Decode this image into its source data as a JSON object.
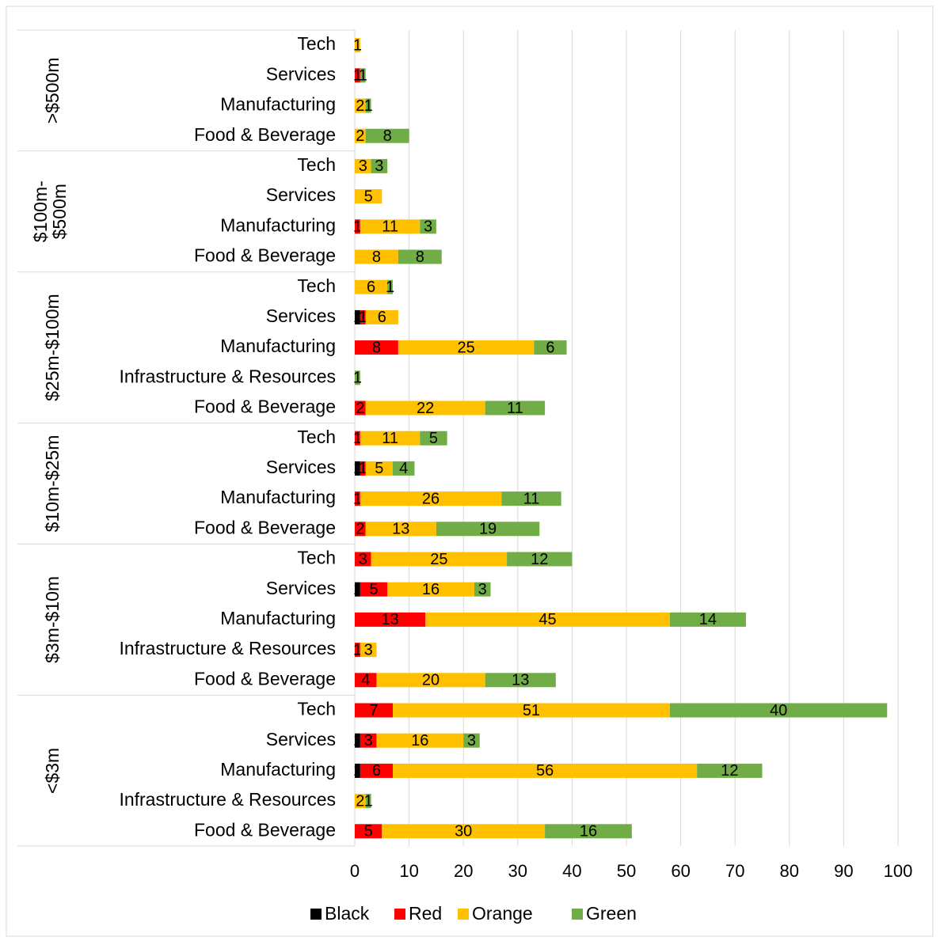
{
  "chart_data": {
    "type": "bar",
    "orientation": "horizontal",
    "stacked": true,
    "title": "",
    "xlabel": "",
    "ylabel": "",
    "xlim": [
      0,
      100
    ],
    "xticks": [
      0,
      10,
      20,
      30,
      40,
      50,
      60,
      70,
      80,
      90,
      100
    ],
    "grid": true,
    "legend_position": "bottom",
    "series": [
      {
        "name": "Black",
        "color": "#000000"
      },
      {
        "name": "Red",
        "color": "#ff0000"
      },
      {
        "name": "Orange",
        "color": "#ffc000"
      },
      {
        "name": "Green",
        "color": "#70ad47"
      }
    ],
    "groups": [
      {
        "name": "<$3m",
        "categories": [
          {
            "label": "Food & Beverage",
            "values": [
              0,
              5,
              30,
              16
            ]
          },
          {
            "label": "Infrastructure & Resources",
            "values": [
              0,
              0,
              2,
              1
            ]
          },
          {
            "label": "Manufacturing",
            "values": [
              1,
              6,
              56,
              12
            ]
          },
          {
            "label": "Services",
            "values": [
              1,
              3,
              16,
              3
            ]
          },
          {
            "label": "Tech",
            "values": [
              0,
              7,
              51,
              40
            ]
          }
        ]
      },
      {
        "name": "$3m-$10m",
        "categories": [
          {
            "label": "Food & Beverage",
            "values": [
              0,
              4,
              20,
              13
            ]
          },
          {
            "label": "Infrastructure & Resources",
            "values": [
              0,
              1,
              3,
              0
            ]
          },
          {
            "label": "Manufacturing",
            "values": [
              0,
              13,
              45,
              14
            ]
          },
          {
            "label": "Services",
            "values": [
              1,
              5,
              16,
              3
            ]
          },
          {
            "label": "Tech",
            "values": [
              0,
              3,
              25,
              12
            ]
          }
        ]
      },
      {
        "name": "$10m-$25m",
        "categories": [
          {
            "label": "Food & Beverage",
            "values": [
              0,
              2,
              13,
              19
            ]
          },
          {
            "label": "Manufacturing",
            "values": [
              0,
              1,
              26,
              11
            ]
          },
          {
            "label": "Services",
            "values": [
              1,
              1,
              5,
              4
            ]
          },
          {
            "label": "Tech",
            "values": [
              0,
              1,
              11,
              5
            ]
          }
        ]
      },
      {
        "name": "$25m-$100m",
        "categories": [
          {
            "label": "Food & Beverage",
            "values": [
              0,
              2,
              22,
              11
            ]
          },
          {
            "label": "Infrastructure & Resources",
            "values": [
              0,
              0,
              0,
              1
            ]
          },
          {
            "label": "Manufacturing",
            "values": [
              0,
              8,
              25,
              6
            ]
          },
          {
            "label": "Services",
            "values": [
              1,
              1,
              6,
              0
            ]
          },
          {
            "label": "Tech",
            "values": [
              0,
              0,
              6,
              1
            ]
          }
        ]
      },
      {
        "name": "$100m-$500m",
        "categories": [
          {
            "label": "Food & Beverage",
            "values": [
              0,
              0,
              8,
              8
            ]
          },
          {
            "label": "Manufacturing",
            "values": [
              0,
              1,
              11,
              3
            ]
          },
          {
            "label": "Services",
            "values": [
              0,
              0,
              5,
              0
            ]
          },
          {
            "label": "Tech",
            "values": [
              0,
              0,
              3,
              3
            ]
          }
        ]
      },
      {
        "name": ">$500m",
        "categories": [
          {
            "label": "Food & Beverage",
            "values": [
              0,
              0,
              2,
              8
            ]
          },
          {
            "label": "Manufacturing",
            "values": [
              0,
              0,
              2,
              1
            ]
          },
          {
            "label": "Services",
            "values": [
              0,
              1,
              0,
              1
            ]
          },
          {
            "label": "Tech",
            "values": [
              0,
              0,
              1,
              0
            ]
          }
        ]
      }
    ]
  }
}
